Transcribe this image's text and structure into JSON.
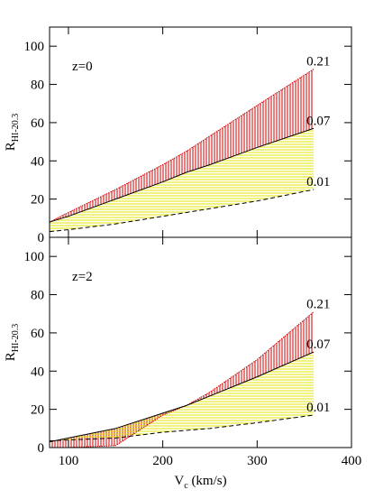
{
  "chart_data": [
    {
      "type": "line",
      "annotation": "z=0",
      "ylabel": "R",
      "ylabel_sub": "HI-20.3",
      "x": [
        80,
        100,
        150,
        200,
        225,
        250,
        300,
        360
      ],
      "xlim": [
        80,
        400
      ],
      "xticks": [
        100,
        200,
        300,
        400
      ],
      "ylim": [
        0,
        110
      ],
      "yticks": [
        0,
        20,
        40,
        60,
        80,
        100
      ],
      "series": [
        {
          "name": "0.21",
          "color": "#cc0000",
          "fill": "#cc0000",
          "hatch": "vertical",
          "values": [
            8,
            13,
            25,
            38,
            45,
            53,
            69,
            88
          ]
        },
        {
          "name": "0.07",
          "color": "#000000",
          "fill": "#e6e600",
          "hatch": "horizontal",
          "values": [
            8,
            11,
            20,
            29,
            34,
            38,
            47,
            57
          ]
        },
        {
          "name": "0.01",
          "color": "#000000",
          "dash": true,
          "values": [
            3,
            4,
            7,
            11,
            13,
            15,
            19,
            25
          ]
        }
      ]
    },
    {
      "type": "line",
      "annotation": "z=2",
      "ylabel": "R",
      "ylabel_sub": "HI-20.3",
      "xlabel": "V",
      "xlabel_sub": "c",
      "xlabel_rest": " (km/s)",
      "x": [
        80,
        100,
        150,
        200,
        225,
        250,
        300,
        360
      ],
      "xlim": [
        80,
        400
      ],
      "xticks": [
        100,
        200,
        300,
        400
      ],
      "ylim": [
        0,
        110
      ],
      "yticks": [
        0,
        20,
        40,
        60,
        80,
        100
      ],
      "series": [
        {
          "name": "0.21",
          "color": "#cc0000",
          "fill": "#cc0000",
          "hatch": "vertical",
          "values": [
            0,
            0,
            1,
            17,
            22,
            29,
            46,
            71
          ]
        },
        {
          "name": "0.07",
          "color": "#000000",
          "fill": "#e6e600",
          "hatch": "horizontal",
          "values": [
            3,
            5,
            10,
            18,
            22,
            27,
            37,
            50
          ]
        },
        {
          "name": "0.01",
          "color": "#000000",
          "dash": true,
          "values": [
            3.5,
            4,
            5,
            8,
            9,
            10,
            13,
            17
          ]
        }
      ]
    }
  ]
}
